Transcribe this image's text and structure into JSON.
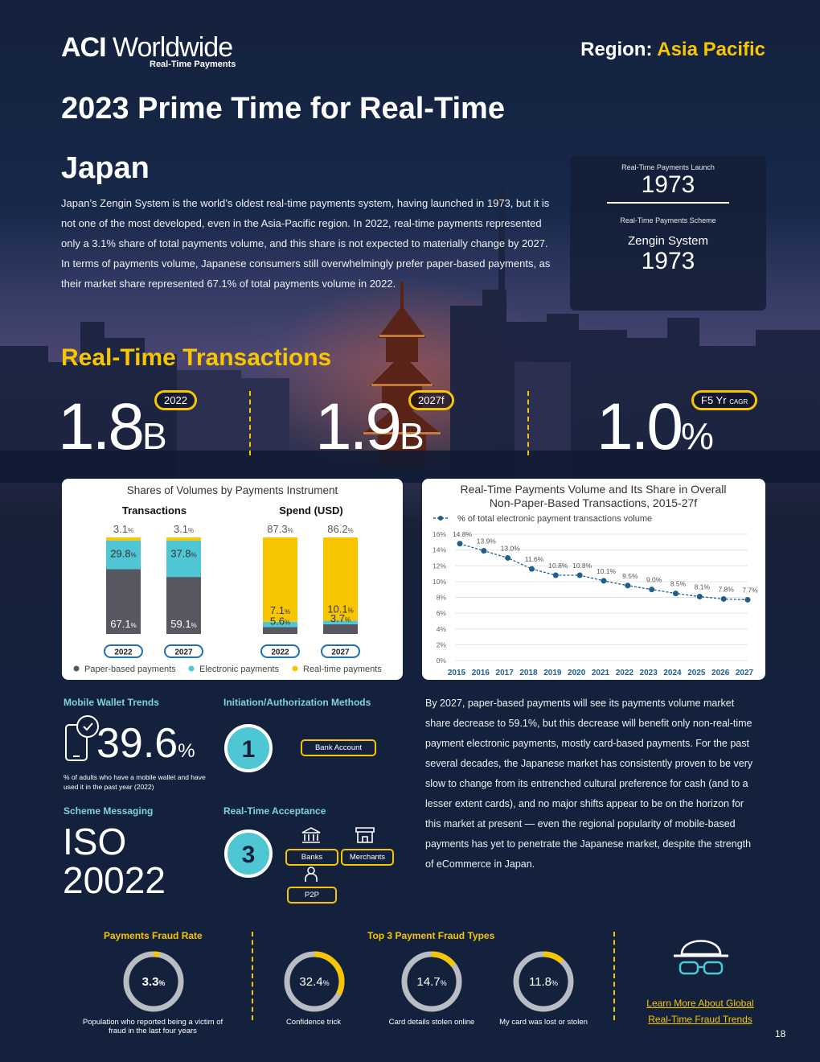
{
  "brand": {
    "name_bold": "ACI",
    "name_rest": "Worldwide",
    "tagline": "Real-Time Payments"
  },
  "region": {
    "label": "Region:",
    "value": "Asia Pacific"
  },
  "title": "2023 Prime Time for Real-Time",
  "country": "Japan",
  "intro": "Japan’s Zengin System is the world’s oldest real-time payments system, having launched in 1973, but it is not one of the most developed, even in the Asia-Pacific region. In 2022, real-time payments represented only a 3.1% share of total payments volume, and this share is not expected to materially change by 2027. In terms of payments volume, Japanese consumers still overwhelmingly prefer paper-based payments, as their market share represented 67.1% of total payments volume in 2022.",
  "infobox": {
    "launch_label": "Real-Time Payments Launch",
    "launch_year": "1973",
    "scheme_label": "Real-Time Payments Scheme",
    "scheme_name": "Zengin System",
    "scheme_year": "1973"
  },
  "rtt": {
    "heading": "Real-Time Transactions",
    "stats": [
      {
        "value": "1.8",
        "unit": "B",
        "tag": "2022",
        "tag_small": ""
      },
      {
        "value": "1.9",
        "unit": "B",
        "tag": "2027f",
        "tag_small": ""
      },
      {
        "value": "1.0",
        "unit": "%",
        "tag": "F5 Yr",
        "tag_small": "CAGR"
      }
    ]
  },
  "shares_chart": {
    "title": "Shares of Volumes by Payments Instrument",
    "group_labels": [
      "Transactions",
      "Spend (USD)"
    ],
    "legend": [
      "Paper-based payments",
      "Electronic payments",
      "Real-time payments"
    ],
    "colors": {
      "paper": "#565761",
      "electronic": "#4fc6d3",
      "realtime": "#f7c600"
    },
    "pct_suffix": "%"
  },
  "chart_data": [
    {
      "type": "bar",
      "title": "Shares of Volumes by Payments Instrument",
      "groups": [
        {
          "name": "Transactions",
          "categories": [
            "2022",
            "2027"
          ],
          "series": [
            {
              "name": "Paper-based payments",
              "values": [
                67.1,
                59.1
              ]
            },
            {
              "name": "Electronic payments",
              "values": [
                29.8,
                37.8
              ]
            },
            {
              "name": "Real-time payments",
              "values": [
                3.1,
                3.1
              ]
            }
          ]
        },
        {
          "name": "Spend (USD)",
          "categories": [
            "2022",
            "2027"
          ],
          "series": [
            {
              "name": "Paper-based payments",
              "values": [
                7.1,
                10.1
              ]
            },
            {
              "name": "Electronic payments",
              "values": [
                5.6,
                3.7
              ]
            },
            {
              "name": "Real-time payments",
              "values": [
                87.3,
                86.2
              ]
            }
          ]
        }
      ],
      "stacked": true,
      "ylim": [
        0,
        100
      ],
      "legend_position": "bottom"
    },
    {
      "type": "line",
      "title": "Real-Time Payments Volume and Its Share in Overall Non-Paper-Based Transactions, 2015-27f",
      "series": [
        {
          "name": "% of total electronic payment transactions volume",
          "x": [
            "2015",
            "2016",
            "2017",
            "2018",
            "2019",
            "2020",
            "2021",
            "2022",
            "2023",
            "2024",
            "2025",
            "2026",
            "2027"
          ],
          "values": [
            14.8,
            13.9,
            13.0,
            11.6,
            10.8,
            10.8,
            10.1,
            9.5,
            9.0,
            8.5,
            8.1,
            7.8,
            7.7
          ]
        }
      ],
      "ylim": [
        0,
        16
      ],
      "yticks": [
        "0%",
        "2%",
        "4%",
        "6%",
        "8%",
        "10%",
        "12%",
        "14%",
        "16%"
      ],
      "grid": true,
      "legend_position": "top-left",
      "color": "#1f5f8b"
    }
  ],
  "mobile": {
    "heading": "Mobile Wallet Trends",
    "value": "39.6",
    "unit": "%",
    "caption": "% of adults who have a mobile wallet and have used it in the past year (2022)"
  },
  "initiation": {
    "heading": "Initiation/Authorization Methods",
    "count": "1",
    "methods": [
      "Bank Account"
    ]
  },
  "scheme_msg": {
    "heading": "Scheme Messaging",
    "line1": "ISO",
    "line2": "20022"
  },
  "acceptance": {
    "heading": "Real-Time Acceptance",
    "count": "3",
    "items": [
      "Banks",
      "Merchants",
      "P2P"
    ]
  },
  "body_copy": "By 2027, paper-based payments will see its payments volume market share decrease to 59.1%, but this decrease will benefit only non-real-time payment electronic payments, mostly card-based payments. For the past several decades, the Japanese market has consistently proven to be very slow to change from its entrenched cultural preference for cash (and to a lesser extent cards), and no major shifts appear to be on the horizon for this market at present — even the regional popularity of mobile-based payments has yet to penetrate the Japanese market, despite the strength of eCommerce in Japan.",
  "fraud": {
    "rate_heading": "Payments Fraud Rate",
    "rate": {
      "value": "3.3",
      "unit": "%",
      "share": 0.033,
      "caption": "Population who reported being a victim of fraud in the last four years"
    },
    "types_heading": "Top 3 Payment Fraud Types",
    "types": [
      {
        "value": "32.4",
        "unit": "%",
        "share": 0.324,
        "caption": "Confidence trick"
      },
      {
        "value": "14.7",
        "unit": "%",
        "share": 0.147,
        "caption": "Card details stolen online"
      },
      {
        "value": "11.8",
        "unit": "%",
        "share": 0.118,
        "caption": "My card was lost or stolen"
      }
    ],
    "link_line1": "Learn More About Global",
    "link_line2": "Real-Time Fraud Trends"
  },
  "page_number": "18",
  "colors": {
    "accent": "#f7c600",
    "teal": "#4fc6d3",
    "navy": "#13213c",
    "line": "#1f5f8b"
  }
}
